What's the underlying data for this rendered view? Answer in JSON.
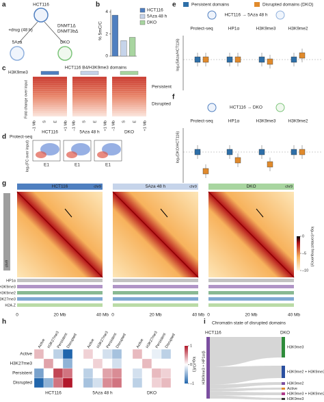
{
  "panels": {
    "a": {
      "letter": "a",
      "top": "HCT116",
      "drug": "+drug (48 h)",
      "ko1": "DNMT1Δ",
      "ko2": "DNMT3bΔ",
      "left": "5Aza",
      "right": "DKO"
    },
    "b": {
      "letter": "b",
      "y_label": "% 5mC/C",
      "categories": [
        "HCT116",
        "5Aza 48 h",
        "DKO"
      ],
      "values": [
        3.7,
        1.4,
        1.7
      ],
      "colors": [
        "#4f7fc0",
        "#c6d4ea",
        "#a8d5a0"
      ],
      "ylim": [
        0,
        4.2
      ],
      "yticks": [
        0,
        2,
        4
      ]
    },
    "c": {
      "letter": "c",
      "title": "HCT116 B4/H3K9me3 domains",
      "mark": "H3K9me3",
      "y_label": "Fold change over input",
      "persistent": "Persistent",
      "disrupted": "Disrupted",
      "x_labels": [
        "–1 Mb",
        "S",
        "E",
        "+1 Mb"
      ],
      "samples": [
        "HCT116",
        "5Aza 48 h",
        "DKO"
      ]
    },
    "d": {
      "letter": "d",
      "title": "Protect-seq",
      "y_label": "log₂(FC over input)",
      "x_label": "E1"
    },
    "e": {
      "letter": "e",
      "legend": [
        "Persistent domains",
        "Disrupted domains (DKO)"
      ],
      "comparison": "HCT116 → 5Aza 48 h",
      "y_label": "log₂(5Aza/HCT116)",
      "groups": [
        "Protect-seq",
        "HP1α",
        "H3K9me3",
        "H3K9me2"
      ]
    },
    "f": {
      "letter": "f",
      "comparison": "HCT116 → DKO",
      "y_label": "log₂(DKO/HCT116)",
      "groups": [
        "Protect-seq",
        "HP1α",
        "H3K9me3",
        "H3K9me2"
      ]
    },
    "g": {
      "letter": "g",
      "samples": [
        "HCT116",
        "5Aza 48 h",
        "DKO"
      ],
      "chrom": "chr9",
      "colorbar_label": "log₁₀(contact frequency)",
      "clim": [
        -10,
        0
      ],
      "cticks": [
        0,
        {
          "value": -5,
          "label": "–5"
        },
        {
          "value": -10,
          "label": "–10"
        }
      ],
      "tracks": [
        "HP1α",
        "H3K9me3",
        "H3K9me2",
        "H3K27me3",
        "H2A.Z"
      ],
      "x_labels": [
        "0",
        "20 Mb",
        "40 Mb"
      ]
    },
    "h": {
      "letter": "h",
      "states": [
        "Active",
        "H3K27me3",
        "Persistent",
        "Disrupted"
      ],
      "samples": [
        "HCT116",
        "5Aza 48 h",
        "DKO"
      ],
      "matrices": [
        [
          [
            0.3,
            0,
            -0.3,
            -1
          ],
          [
            0,
            0.4,
            0,
            -0.5
          ],
          [
            -0.6,
            0,
            0.8,
            0.6
          ],
          [
            -1,
            -0.5,
            0.6,
            1
          ]
        ],
        [
          [
            0.2,
            0,
            -0.2,
            -0.4
          ],
          [
            0,
            0.2,
            0,
            -0.2
          ],
          [
            -0.3,
            0,
            0.4,
            0.5
          ],
          [
            -0.4,
            -0.2,
            0.5,
            0.6
          ]
        ],
        [
          [
            0.3,
            0,
            -0.1,
            -0.3
          ],
          [
            0,
            0.3,
            0,
            0
          ],
          [
            -0.2,
            0,
            0.3,
            0.2
          ],
          [
            -0.3,
            0,
            0.2,
            0.3
          ]
        ]
      ],
      "colorbar_label": "log₂(O/E)",
      "clim": [
        -1,
        1
      ],
      "cticks": [
        1,
        0,
        {
          "value": -1,
          "label": "–1"
        }
      ]
    },
    "i": {
      "letter": "i",
      "title": "Chromatin state of disrupted domains",
      "left": "HCT116",
      "right": "DKO",
      "source": "H3K9me3 + HP1α/β",
      "targets": [
        "H3K9me3",
        "H3K9me2 + H3K9me3",
        "H3K9me2",
        "Active",
        "H3K9me3 + H3K9me2 + HP1α/β",
        "H3K9me3"
      ]
    }
  }
}
